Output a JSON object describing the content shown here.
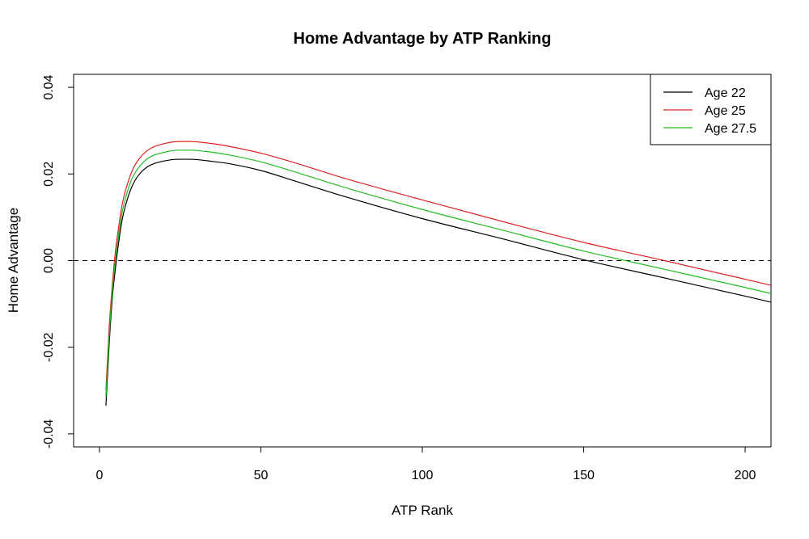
{
  "chart_data": {
    "type": "line",
    "title": "Home Advantage by ATP Ranking",
    "xlabel": "ATP Rank",
    "ylabel": "Home Advantage",
    "xlim": [
      -8,
      208
    ],
    "ylim": [
      -0.043,
      0.043
    ],
    "x_ticks": [
      0,
      50,
      100,
      150,
      200
    ],
    "y_ticks": [
      -0.04,
      -0.02,
      0.0,
      0.02,
      0.04
    ],
    "y_tick_labels": [
      "-0.04",
      "-0.02",
      "0.00",
      "0.02",
      "0.04"
    ],
    "reference_line": {
      "y": 0,
      "style": "dashed"
    },
    "legend_position": "top-right",
    "series": [
      {
        "name": "Age 22",
        "color": "#000000",
        "x": [
          2,
          3,
          4,
          5,
          6,
          7,
          8,
          10,
          12,
          15,
          20,
          25,
          28,
          35,
          40,
          50,
          60,
          75,
          100,
          125,
          150,
          175,
          200,
          208
        ],
        "y": [
          -0.0335,
          -0.0195,
          -0.0085,
          -0.0015,
          0.0045,
          0.0093,
          0.0125,
          0.017,
          0.0196,
          0.0217,
          0.023,
          0.0234,
          0.0234,
          0.0229,
          0.0224,
          0.0208,
          0.0185,
          0.015,
          0.0097,
          0.005,
          0.0002,
          -0.004,
          -0.0082,
          -0.0096
        ]
      },
      {
        "name": "Age 25",
        "color": "#dd2222",
        "x": [
          2,
          3,
          4,
          5,
          6,
          7,
          8,
          10,
          12,
          15,
          20,
          25,
          28,
          35,
          40,
          50,
          60,
          75,
          100,
          125,
          150,
          175,
          200,
          208
        ],
        "y": [
          -0.03,
          -0.0155,
          -0.0055,
          0.0025,
          0.008,
          0.0128,
          0.016,
          0.0205,
          0.0232,
          0.0255,
          0.027,
          0.0275,
          0.0275,
          0.027,
          0.0264,
          0.0248,
          0.0227,
          0.0192,
          0.014,
          0.009,
          0.0042,
          0.0,
          -0.0043,
          -0.0057
        ]
      },
      {
        "name": "Age 27.5",
        "color": "#22bb22",
        "x": [
          2,
          3,
          4,
          5,
          6,
          7,
          8,
          10,
          12,
          15,
          20,
          25,
          28,
          35,
          40,
          50,
          60,
          75,
          100,
          125,
          150,
          175,
          200,
          208
        ],
        "y": [
          -0.0315,
          -0.0175,
          -0.007,
          0.0005,
          0.0062,
          0.011,
          0.0142,
          0.0188,
          0.0213,
          0.0236,
          0.025,
          0.0255,
          0.0255,
          0.025,
          0.0244,
          0.0228,
          0.0206,
          0.0171,
          0.0118,
          0.007,
          0.0022,
          -0.002,
          -0.0062,
          -0.0076
        ]
      }
    ]
  }
}
